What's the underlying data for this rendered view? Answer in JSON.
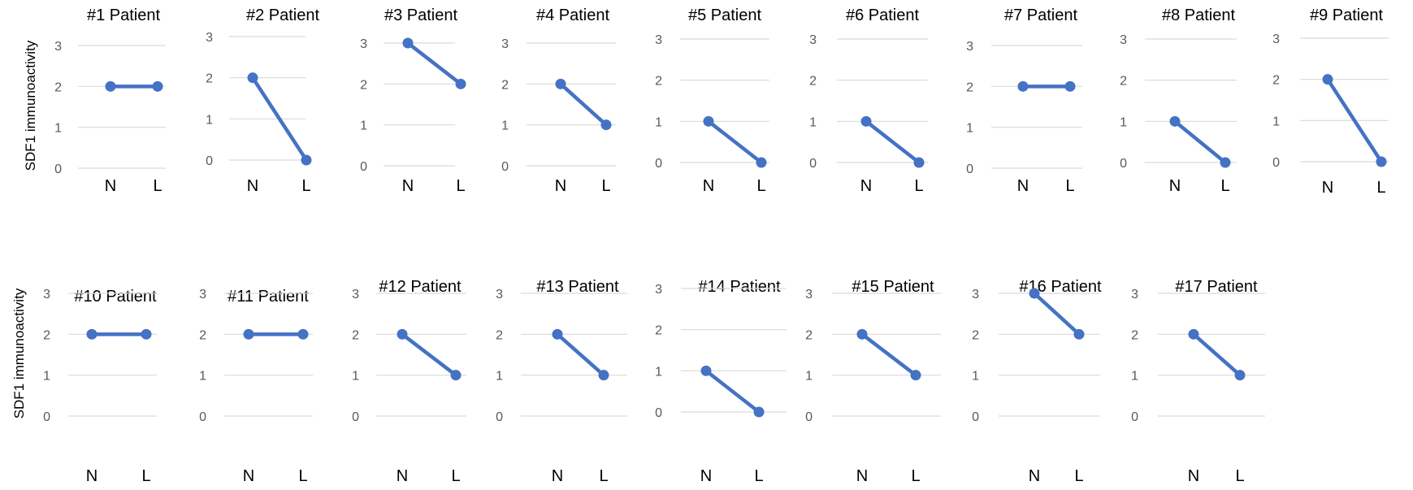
{
  "chart_data": {
    "type": "line",
    "panel_title_suffix": "Patient",
    "ylabel": "SDF1 immunoactivity",
    "categories": [
      "N",
      "L"
    ],
    "ylim": [
      0,
      3
    ],
    "yticks": [
      0,
      1,
      2,
      3
    ],
    "grid": true,
    "line_color": "#4472C4",
    "grid_color": "#D9D9D9",
    "panels": [
      {
        "title": "#1 Patient",
        "values": [
          2,
          2
        ]
      },
      {
        "title": "#2 Patient",
        "values": [
          2,
          0
        ]
      },
      {
        "title": "#3 Patient",
        "values": [
          3,
          2
        ]
      },
      {
        "title": "#4 Patient",
        "values": [
          2,
          1
        ]
      },
      {
        "title": "#5 Patient",
        "values": [
          1,
          0
        ]
      },
      {
        "title": "#6 Patient",
        "values": [
          1,
          0
        ]
      },
      {
        "title": "#7 Patient",
        "values": [
          2,
          2
        ]
      },
      {
        "title": "#8 Patient",
        "values": [
          1,
          0
        ]
      },
      {
        "title": "#9 Patient",
        "values": [
          2,
          0
        ]
      },
      {
        "title": "#10 Patient",
        "values": [
          2,
          2
        ]
      },
      {
        "title": "#11 Patient",
        "values": [
          2,
          2
        ]
      },
      {
        "title": "#12 Patient",
        "values": [
          2,
          1
        ]
      },
      {
        "title": "#13 Patient",
        "values": [
          2,
          1
        ]
      },
      {
        "title": "#14 Patient",
        "values": [
          1,
          0
        ]
      },
      {
        "title": "#15 Patient",
        "values": [
          2,
          1
        ]
      },
      {
        "title": "#16 Patient",
        "values": [
          3,
          2
        ]
      },
      {
        "title": "#17 Patient",
        "values": [
          2,
          1
        ]
      }
    ]
  }
}
